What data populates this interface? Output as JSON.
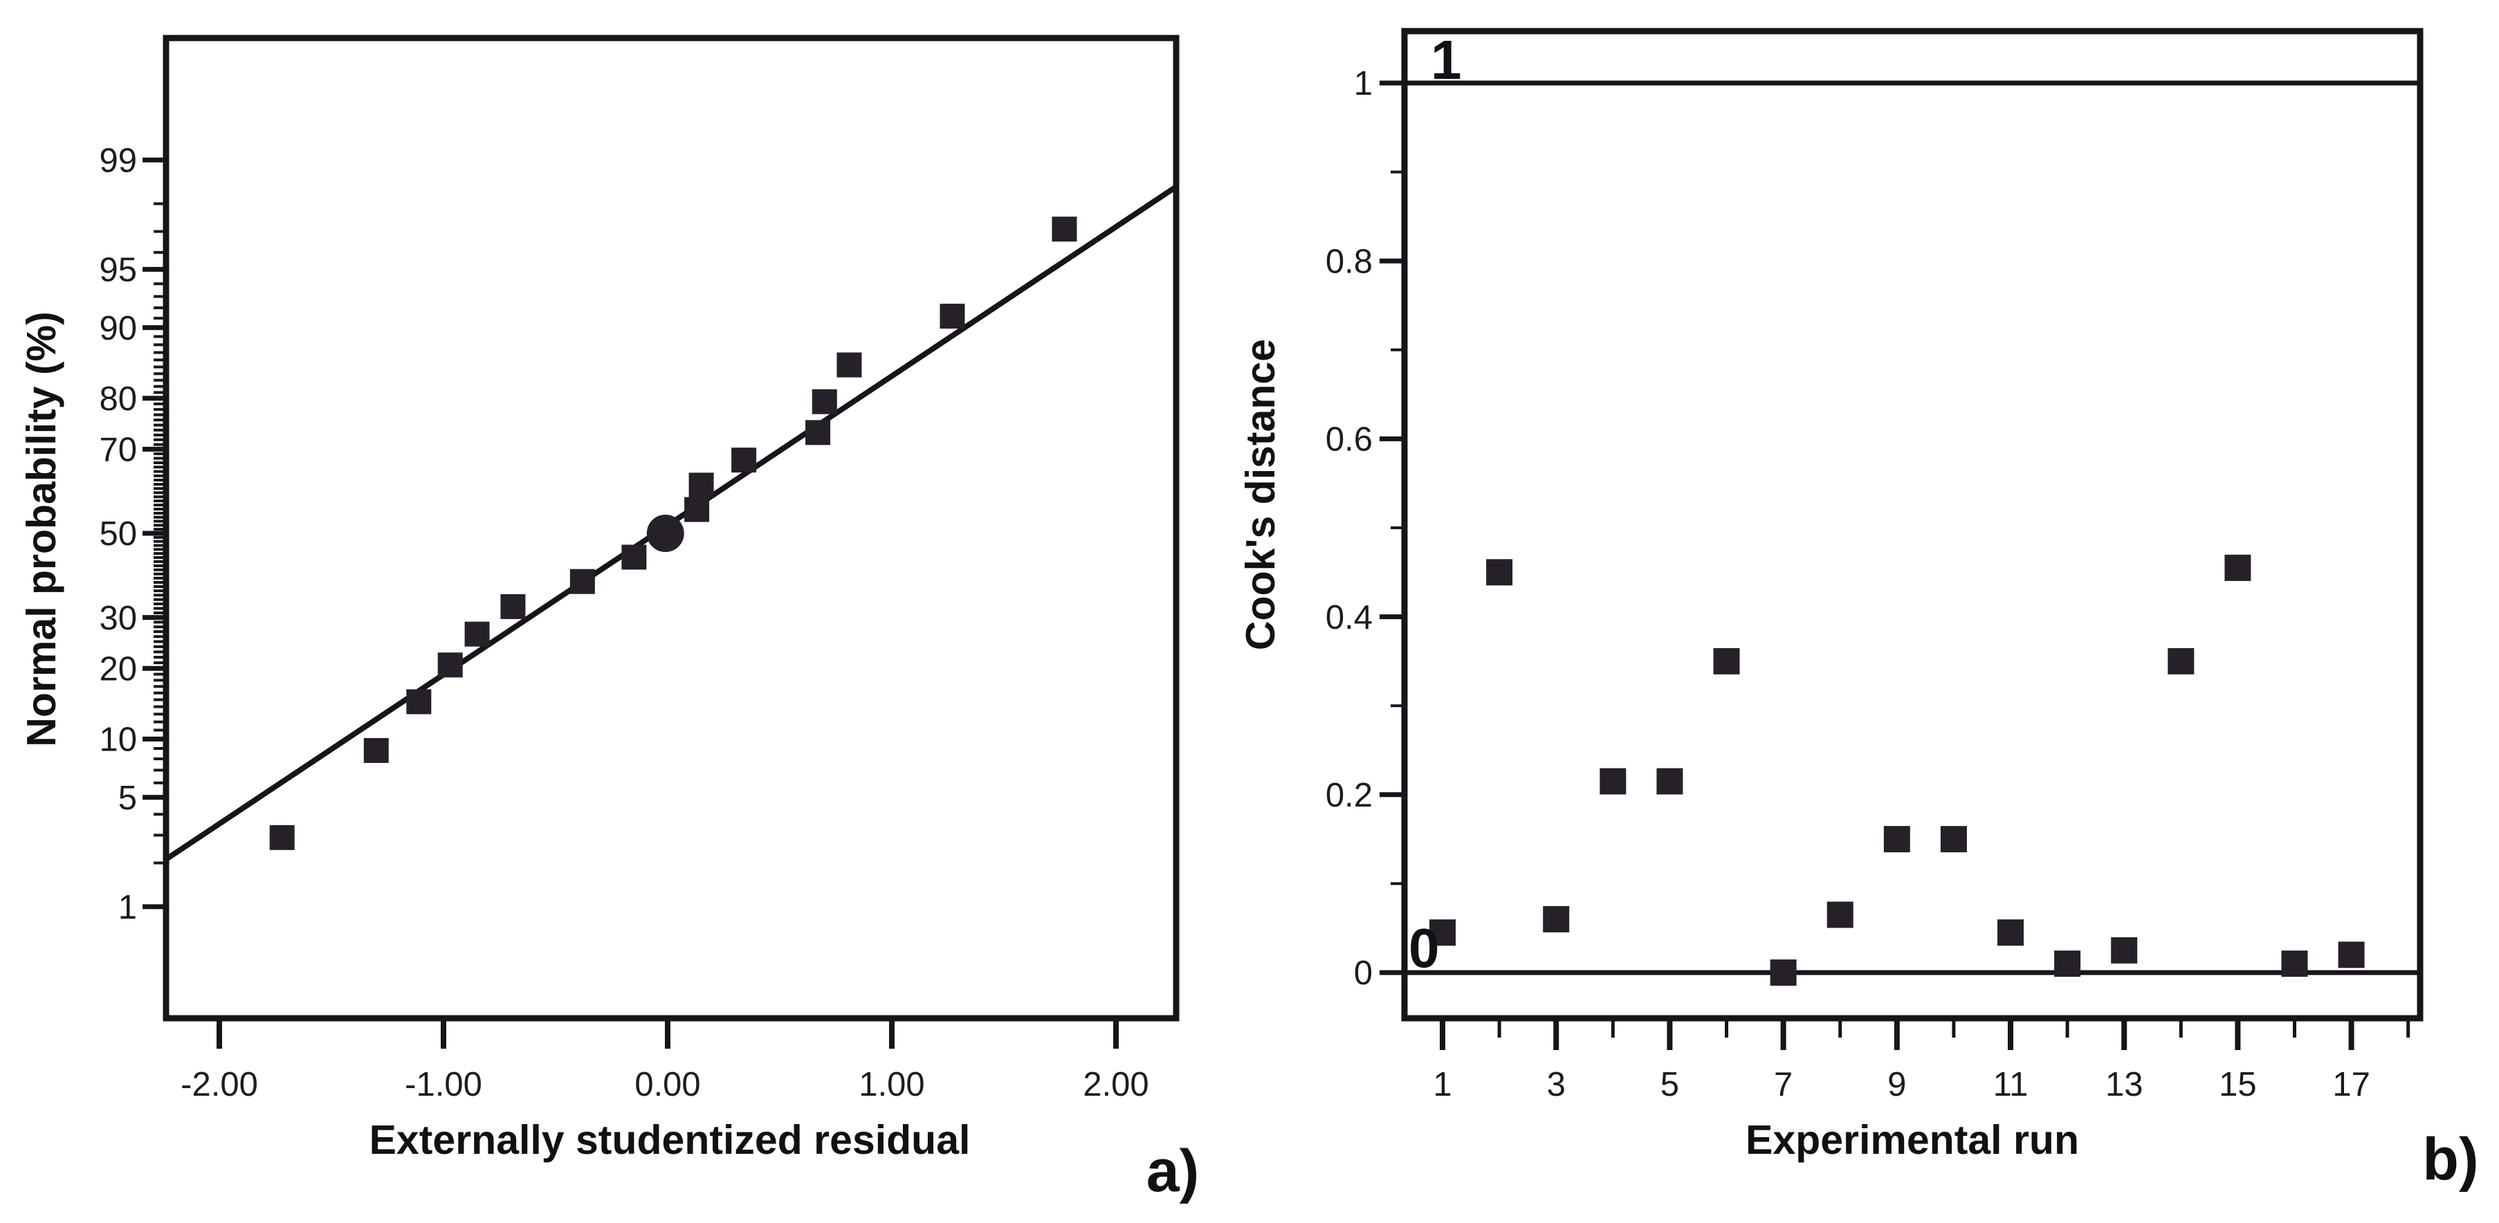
{
  "figure": {
    "background": "#ffffff",
    "ink_color": "#17141a",
    "marker_color": "#262129",
    "tick_text_color": "#1d1a20"
  },
  "chart_data": [
    {
      "id": "normal_probability",
      "type": "scatter",
      "panel_label": "a)",
      "xlabel": "Externally studentized residual",
      "ylabel": "Normal probability (%)",
      "y_scale": "normal-probability-percent",
      "xlim": [
        -2.24,
        2.27
      ],
      "ylim_percent": [
        0.13,
        99.87
      ],
      "grid": false,
      "legend": null,
      "x_ticks": [
        {
          "value": -2,
          "label": "-2.00"
        },
        {
          "value": -1,
          "label": "-1.00"
        },
        {
          "value": 0,
          "label": "0.00"
        },
        {
          "value": 1,
          "label": "1.00"
        },
        {
          "value": 2,
          "label": "2.00"
        }
      ],
      "y_ticks": [
        {
          "value": 1,
          "label": "1"
        },
        {
          "value": 5,
          "label": "5"
        },
        {
          "value": 10,
          "label": "10"
        },
        {
          "value": 20,
          "label": "20"
        },
        {
          "value": 30,
          "label": "30"
        },
        {
          "value": 50,
          "label": "50"
        },
        {
          "value": 70,
          "label": "70"
        },
        {
          "value": 80,
          "label": "80"
        },
        {
          "value": 90,
          "label": "90"
        },
        {
          "value": 95,
          "label": "95"
        },
        {
          "value": 99,
          "label": "99"
        }
      ],
      "y_minor_ticks_percent": {
        "from": 1,
        "to": 99,
        "step": 1
      },
      "fit_line": {
        "z_intercept": 0.05,
        "z_slope_per_residual": 0.93
      },
      "points": [
        {
          "residual": -1.72,
          "probability_percent": 2.9,
          "marker": "square"
        },
        {
          "residual": -1.3,
          "probability_percent": 8.8,
          "marker": "square"
        },
        {
          "residual": -1.11,
          "probability_percent": 14.7,
          "marker": "square"
        },
        {
          "residual": -0.97,
          "probability_percent": 20.6,
          "marker": "square"
        },
        {
          "residual": -0.85,
          "probability_percent": 26.5,
          "marker": "square"
        },
        {
          "residual": -0.69,
          "probability_percent": 32.4,
          "marker": "square"
        },
        {
          "residual": -0.38,
          "probability_percent": 38.2,
          "marker": "square"
        },
        {
          "residual": -0.15,
          "probability_percent": 44.1,
          "marker": "square"
        },
        {
          "residual": -0.01,
          "probability_percent": 50.0,
          "marker": "circle"
        },
        {
          "residual": 0.13,
          "probability_percent": 55.9,
          "marker": "square"
        },
        {
          "residual": 0.15,
          "probability_percent": 61.8,
          "marker": "square"
        },
        {
          "residual": 0.34,
          "probability_percent": 67.6,
          "marker": "square"
        },
        {
          "residual": 0.67,
          "probability_percent": 73.5,
          "marker": "square"
        },
        {
          "residual": 0.7,
          "probability_percent": 79.4,
          "marker": "square"
        },
        {
          "residual": 0.81,
          "probability_percent": 85.3,
          "marker": "square"
        },
        {
          "residual": 1.27,
          "probability_percent": 91.2,
          "marker": "square"
        },
        {
          "residual": 1.77,
          "probability_percent": 97.1,
          "marker": "square"
        }
      ]
    },
    {
      "id": "cooks_distance",
      "type": "scatter",
      "panel_label": "b)",
      "xlabel": "Experimental run",
      "ylabel": "Cook's distance",
      "y_scale": "linear",
      "xlim": [
        0.35,
        18.2
      ],
      "ylim": [
        -0.068,
        1.058
      ],
      "grid": false,
      "legend": null,
      "x_ticks": [
        {
          "value": 1,
          "label": "1"
        },
        {
          "value": 3,
          "label": "3"
        },
        {
          "value": 5,
          "label": "5"
        },
        {
          "value": 7,
          "label": "7"
        },
        {
          "value": 9,
          "label": "9"
        },
        {
          "value": 11,
          "label": "11"
        },
        {
          "value": 13,
          "label": "13"
        },
        {
          "value": 15,
          "label": "15"
        },
        {
          "value": 17,
          "label": "17"
        }
      ],
      "x_minor_ticks": [
        2,
        4,
        6,
        8,
        10,
        12,
        14,
        16,
        18
      ],
      "y_ticks": [
        {
          "value": 0,
          "label": "0"
        },
        {
          "value": 0.2,
          "label": "0.2"
        },
        {
          "value": 0.4,
          "label": "0.4"
        },
        {
          "value": 0.6,
          "label": "0.6"
        },
        {
          "value": 0.8,
          "label": "0.8"
        },
        {
          "value": 1,
          "label": "1"
        }
      ],
      "y_minor_ticks": [
        0.1,
        0.3,
        0.5,
        0.7,
        0.9
      ],
      "reference_lines": [
        {
          "value": 1,
          "label": "1"
        },
        {
          "value": 0,
          "label": "0"
        }
      ],
      "points": [
        {
          "run": 1,
          "cooks_distance": 0.045
        },
        {
          "run": 2,
          "cooks_distance": 0.45
        },
        {
          "run": 3,
          "cooks_distance": 0.06
        },
        {
          "run": 4,
          "cooks_distance": 0.215
        },
        {
          "run": 5,
          "cooks_distance": 0.215
        },
        {
          "run": 6,
          "cooks_distance": 0.35
        },
        {
          "run": 7,
          "cooks_distance": 0.0
        },
        {
          "run": 8,
          "cooks_distance": 0.065
        },
        {
          "run": 9,
          "cooks_distance": 0.15
        },
        {
          "run": 10,
          "cooks_distance": 0.15
        },
        {
          "run": 11,
          "cooks_distance": 0.045
        },
        {
          "run": 12,
          "cooks_distance": 0.01
        },
        {
          "run": 13,
          "cooks_distance": 0.025
        },
        {
          "run": 14,
          "cooks_distance": 0.35
        },
        {
          "run": 15,
          "cooks_distance": 0.455
        },
        {
          "run": 16,
          "cooks_distance": 0.01
        },
        {
          "run": 17,
          "cooks_distance": 0.02
        }
      ]
    }
  ]
}
